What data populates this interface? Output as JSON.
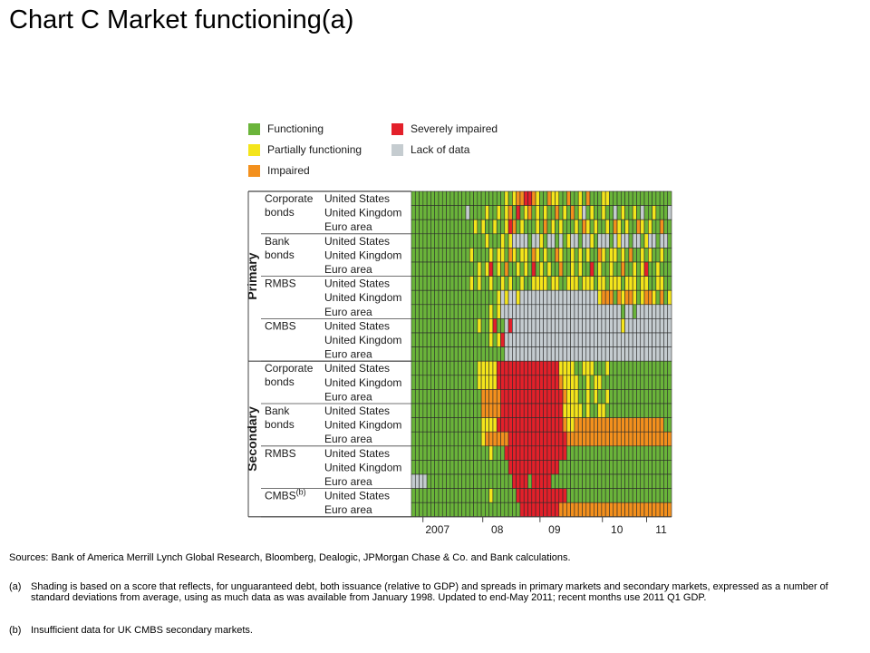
{
  "title": "Chart C  Market functioning(a)",
  "legend": [
    {
      "label": "Functioning",
      "color": "#6ab43a"
    },
    {
      "label": "Partially functioning",
      "color": "#f4e51b"
    },
    {
      "label": "Impaired",
      "color": "#f3901d"
    },
    {
      "label": "Severely impaired",
      "color": "#e3202a"
    },
    {
      "label": "Lack of data",
      "color": "#c5ccd0"
    }
  ],
  "groups": [
    {
      "label": "Primary",
      "markets": [
        {
          "name": "Corporate\nbonds",
          "rows": [
            "United States",
            "United Kingdom",
            "Euro area"
          ]
        },
        {
          "name": "Bank\nbonds",
          "rows": [
            "United States",
            "United Kingdom",
            "Euro area"
          ]
        },
        {
          "name": "RMBS",
          "rows": [
            "United States",
            "United Kingdom",
            "Euro area"
          ]
        },
        {
          "name": "CMBS",
          "rows": [
            "United States",
            "United Kingdom",
            "Euro area"
          ]
        }
      ]
    },
    {
      "label": "Secondary",
      "markets": [
        {
          "name": "Corporate\nbonds",
          "rows": [
            "United States",
            "United Kingdom",
            "Euro area"
          ]
        },
        {
          "name": "Bank\nbonds",
          "rows": [
            "United States",
            "United Kingdom",
            "Euro area"
          ]
        },
        {
          "name": "RMBS",
          "rows": [
            "United States",
            "United Kingdom",
            "Euro area"
          ]
        },
        {
          "name": "CMBS(b)",
          "rows": [
            "United States",
            "Euro area"
          ]
        }
      ]
    }
  ],
  "x_ticks": [
    "2007",
    "08",
    "09",
    "10",
    "11"
  ],
  "sources": "Sources:  Bank of America Merrill Lynch Global Research, Bloomberg, Dealogic, JPMorgan Chase & Co. and Bank calculations.",
  "notes": [
    {
      "tag": "(a)",
      "text": "Shading is based on a score that reflects, for unguaranteed debt, both issuance (relative to GDP) and spreads in primary markets and secondary markets, expressed as a number of standard deviations from average, using as much data as was available from January 1998.   Updated to end-May 2011;   recent months use 2011 Q1 GDP."
    },
    {
      "tag": "(b)",
      "text": "Insufficient data for UK CMBS secondary markets."
    }
  ],
  "chart_data": {
    "type": "heatmap",
    "title": "Market functioning",
    "x": [
      "2007",
      "08",
      "09",
      "10",
      "11"
    ],
    "colors": {
      "F": "#6ab43a",
      "P": "#f4e51b",
      "I": "#f3901d",
      "S": "#e3202a",
      "N": "#c5ccd0"
    },
    "rows": [
      {
        "group": "Primary",
        "market": "Corporate bonds",
        "region": "United States",
        "cells": "FFFFFFFFFFFFFFFFFFFFFFFFPFPIISSIPFFIPPFFIFFPFIFFFPPFFFFFFFFFFFFFFFF"
      },
      {
        "group": "Primary",
        "market": "Corporate bonds",
        "region": "United Kingdom",
        "cells": "FFFFFFFFFFFFFFNFFFFPFFPFPIFSFPIFPFPFFIFPFIFPNFPFFPFFNFPFFPFNFFPFFFNF"
      },
      {
        "group": "Primary",
        "market": "Corporate bonds",
        "region": "Euro area",
        "cells": "FFFFFFFFFFFFFFFFPFPFFPFFPSIFPFFFPFIFPFPFFFPFIPFPFFPFIPFPFFIPFPFFIFFP"
      },
      {
        "group": "Primary",
        "market": "Bank bonds",
        "region": "United States",
        "cells": "FFFFFFFFFFFFFFFFFFFPFFFPFPNNNNFNNPFNNFNFPNNFNNPFNNNFNPNNFNNFPNNFNNFF"
      },
      {
        "group": "Primary",
        "market": "Bank bonds",
        "region": "United Kingdom",
        "cells": "FFFFFFFFFFFFFFFPFFFFPFPPFIPFPPFIPFPFFIPFFPFPFPFFIPFPPFPFIFFPFPFFPFFF"
      },
      {
        "group": "Primary",
        "market": "Bank bonds",
        "region": "Euro area",
        "cells": "FFFFFFFFFFFFFFFFFPFPSFPFIFFPFPFSFPFPFFIFFPFPFFSFPFFPFFIFFPFPSFFPFFFF"
      },
      {
        "group": "Primary",
        "market": "RMBS",
        "region": "United States",
        "cells": "FFFFFFFFFFFFFFFPFPFFPFFPFPFFPFFPPPPFPPFFPPPFPPPFPPFPPPFPPPFPPFFPPFFN"
      },
      {
        "group": "Primary",
        "market": "RMBS",
        "region": "United Kingdom",
        "cells": "FFFFFFFFFFFFFFFFFFFFFFPNPNNPNNNNNNNNNNNNNNNNNNNNPIIIFIPIIPFPIIPFIFPF"
      },
      {
        "group": "Primary",
        "market": "RMBS",
        "region": "Euro area",
        "cells": "FFFFFFFFFFFFFFFFFFFFPFPNNNNNNNNNNNNNNNNNNNNNNNNNNNNNNNFNNFNNNNNNNNNN"
      },
      {
        "group": "Primary",
        "market": "CMBS",
        "region": "United States",
        "cells": "FFFFFFFFFFFFFFFFFPFFPSFFNSNNNNNNNNNNNNNNNNNNNNNNNNNNNNPNNNNNNNNNNNNN"
      },
      {
        "group": "Primary",
        "market": "CMBS",
        "region": "United Kingdom",
        "cells": "FFFFFFFFFFFFFFFFFFFFPFPSNNNNNNNNNNNNNNNNNNNNNNNNNNNNNNNNNNNNNNNNNNNN"
      },
      {
        "group": "Primary",
        "market": "CMBS",
        "region": "Euro area",
        "cells": "FFFFFFFFFFFFFFFFFFFFFFFFNNNNNNNNNNNNNNNNNNNNNNNNNNNNNNNNNNNNNNNNNNNN"
      },
      {
        "group": "Secondary",
        "market": "Corporate bonds",
        "region": "United States",
        "cells": "FFFFFFFFFFFFFFFFFPPPPPSSSSSSSSSSSSSSSSPPPPFFPPPFFFPFFFFFFFFFFFFFFFFF"
      },
      {
        "group": "Secondary",
        "market": "Corporate bonds",
        "region": "United Kingdom",
        "cells": "FFFFFFFFFFFFFFFFFPPPPPSSSSSSSSSSSSSSSSIPPPPFFPFPPFFFFFFFFFFFFFFFFFFF"
      },
      {
        "group": "Secondary",
        "market": "Corporate bonds",
        "region": "Euro area",
        "cells": "FFFFFFFFFFFFFFFFFFIIIIISSSSSSSSSSSSSSSSIPPPFFPFPFFPFFFFFFFFFFFFFFFFF"
      },
      {
        "group": "Secondary",
        "market": "Bank bonds",
        "region": "United States",
        "cells": "FFFFFFFFFFFFFFFFFFIIIIISSSSSSSSSSSSSSSSPPPPPFPFFPPFFFFFFFFFFFFFFFFFF"
      },
      {
        "group": "Secondary",
        "market": "Bank bonds",
        "region": "United Kingdom",
        "cells": "FFFFFFFFFFFFFFFFFFPPPPSSSSSSSSSSSSSSSSSIPPIIIIIIIIIIIIIIIIIIIIIIIFFF"
      },
      {
        "group": "Secondary",
        "market": "Bank bonds",
        "region": "Euro area",
        "cells": "FFFFFFFFFFFFFFFFFFPIIIIIISSSSSSSSSSSSSSSIIIIIIIIIIIIIIIIIIIIIIIIIIII"
      },
      {
        "group": "Secondary",
        "market": "RMBS",
        "region": "United States",
        "cells": "FFFFFFFFFFFFFFFFFFFFPFFFSSSSSSSSSSSSSSSSFFFFFFFFFFFFFFFFFFFFFFFFFFFF"
      },
      {
        "group": "Secondary",
        "market": "RMBS",
        "region": "United Kingdom",
        "cells": "FFFFFFFFFFFFFFFFFFFFFFFFFSSSSSSSSSSSSSFFFFFFFFFFFFFFFFFFFFFFFFFFFFFF"
      },
      {
        "group": "Secondary",
        "market": "RMBS",
        "region": "Euro area",
        "cells": "NNNNFFFFFFFFFFFFFFFFFFFFFFSSSSFSSSSSFFFFFFFFFFFFFFFFFFFFFFFFFFFFFFFF"
      },
      {
        "group": "Secondary",
        "market": "CMBS",
        "region": "United States",
        "cells": "FFFFFFFFFFFFFFFFFFFFPFFFFFFSSSSSSSSSSSSSFFFFFFFFFFFFFFFFFFFFFFFFFFFF"
      },
      {
        "group": "Secondary",
        "market": "CMBS",
        "region": "Euro area",
        "cells": "FFFFFFFFFFFFFFFFFFFFFFFFFFFFSSSSSSSSSSIIIIIIIIIIIIIIIIIIIIIIIIIIIIII"
      }
    ]
  }
}
